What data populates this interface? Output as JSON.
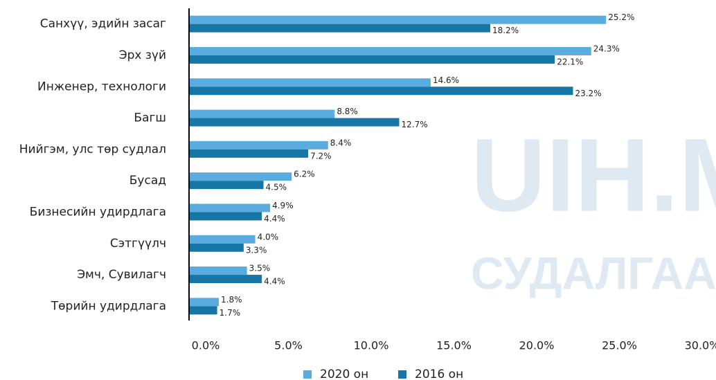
{
  "chart_data": {
    "type": "barh",
    "watermark": [
      "UIH.MN",
      "СУДАЛГААНЫ СТ"
    ],
    "categories": [
      "Санхүү, эдийн засаг",
      "Эрх зүй",
      "Инженер, технологи",
      "Багш",
      "Нийгэм, улс төр судлал",
      "Бусад",
      "Бизнесийн удирдлага",
      "Сэтгүүлч",
      "Эмч, Сувилагч",
      "Төрийн удирдлага"
    ],
    "series": [
      {
        "name": "2020 он",
        "color": "#5aacdf",
        "values": [
          25.2,
          24.3,
          14.6,
          8.8,
          8.4,
          6.2,
          4.9,
          4.0,
          3.5,
          1.8
        ],
        "value_labels": [
          "25.2%",
          "24.3%",
          "14.6%",
          "8.8%",
          "8.4%",
          "6.2%",
          "4.9%",
          "4.0%",
          "3.5%",
          "1.8%"
        ]
      },
      {
        "name": "2016 он",
        "color": "#1677a7",
        "values": [
          18.2,
          22.1,
          23.2,
          12.7,
          7.2,
          4.5,
          4.4,
          3.3,
          4.4,
          1.7
        ],
        "value_labels": [
          "18.2%",
          "22.1%",
          "23.2%",
          "12.7%",
          "7.2%",
          "4.5%",
          "4.4%",
          "3.3%",
          "4.4%",
          "1.7%"
        ]
      }
    ],
    "xlim": [
      0,
      30
    ],
    "xticks": [
      {
        "value": 0,
        "label": "0.0%"
      },
      {
        "value": 5,
        "label": "5.0%"
      },
      {
        "value": 10,
        "label": "10.0%"
      },
      {
        "value": 15,
        "label": "15.0%"
      },
      {
        "value": 20,
        "label": "20.0%"
      },
      {
        "value": 25,
        "label": "25.0%"
      },
      {
        "value": 30,
        "label": "30.0%"
      }
    ],
    "legend": "bottom"
  }
}
